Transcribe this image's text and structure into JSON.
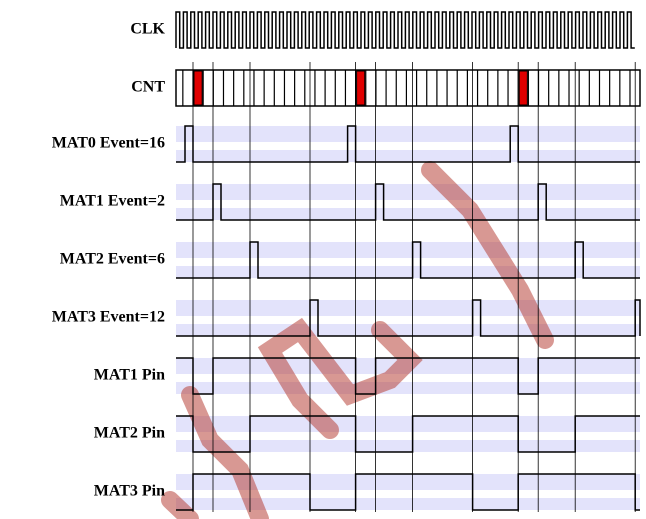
{
  "signals": [
    {
      "label": "CLK"
    },
    {
      "label": "CNT"
    },
    {
      "label": "MAT0 Event=16"
    },
    {
      "label": "MAT1 Event=2"
    },
    {
      "label": "MAT2 Event=6"
    },
    {
      "label": "MAT3 Event=12"
    },
    {
      "label": "MAT1 Pin"
    },
    {
      "label": "MAT2 Pin"
    },
    {
      "label": "MAT3 Pin"
    }
  ]
}
